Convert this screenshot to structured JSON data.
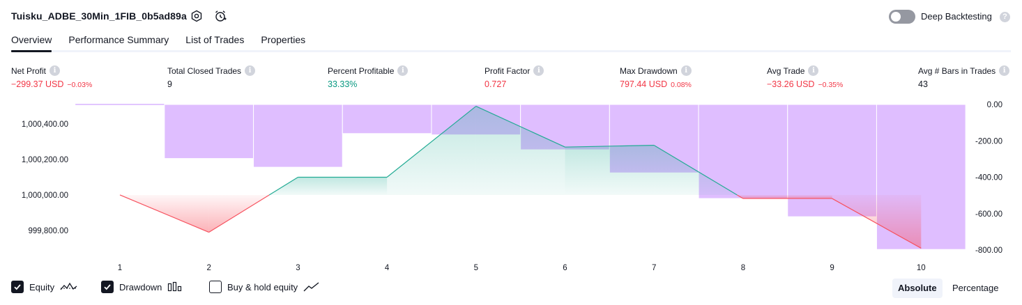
{
  "header": {
    "title": "Tuisku_ADBE_30Min_1FIB_0b5ad89a",
    "deep_backtesting_label": "Deep Backtesting",
    "help_glyph": "?"
  },
  "tabs": [
    {
      "label": "Overview",
      "active": true
    },
    {
      "label": "Performance Summary",
      "active": false
    },
    {
      "label": "List of Trades",
      "active": false
    },
    {
      "label": "Properties",
      "active": false
    }
  ],
  "metrics": [
    {
      "label": "Net Profit",
      "value": "−299.37 USD",
      "sub": "−0.03%",
      "color": "#f23645"
    },
    {
      "label": "Total Closed Trades",
      "value": "9",
      "sub": "",
      "color": "#131722"
    },
    {
      "label": "Percent Profitable",
      "value": "33.33%",
      "sub": "",
      "color": "#089981"
    },
    {
      "label": "Profit Factor",
      "value": "0.727",
      "sub": "",
      "color": "#f23645"
    },
    {
      "label": "Max Drawdown",
      "value": "797.44 USD",
      "sub": "0.08%",
      "color": "#f23645"
    },
    {
      "label": "Avg Trade",
      "value": "−33.26 USD",
      "sub": "−0.35%",
      "color": "#f23645"
    },
    {
      "label": "Avg # Bars in Trades",
      "value": "43",
      "sub": "",
      "color": "#131722"
    }
  ],
  "info_glyph": "i",
  "chart_data": {
    "type": "line",
    "x": [
      1,
      2,
      3,
      4,
      5,
      6,
      7,
      8,
      9,
      10
    ],
    "equity": {
      "name": "Equity",
      "values": [
        1000000,
        999790,
        1000100,
        1000100,
        1000500,
        1000270,
        1000280,
        999980,
        999980,
        999700
      ],
      "baseline": 1000000,
      "ylim": [
        999690,
        1000510
      ],
      "yticks": [
        "1,000,400.00",
        "1,000,200.00",
        "1,000,000.00",
        "999,800.00"
      ],
      "ytick_values": [
        1000400,
        1000200,
        1000000,
        999800
      ],
      "color_up": "#22ab94",
      "color_down": "#f7525f"
    },
    "drawdown": {
      "name": "Drawdown",
      "values": [
        0,
        -297,
        -345,
        -160,
        -167,
        -249,
        -376,
        -517,
        -617,
        -797
      ],
      "ylim": [
        -800,
        0
      ],
      "yticks": [
        "0.00",
        "-200.00",
        "-400.00",
        "-600.00",
        "-800.00"
      ],
      "ytick_values": [
        0,
        -200,
        -400,
        -600,
        -800
      ],
      "color": "#d9b3ff"
    },
    "xticks": [
      "1",
      "2",
      "3",
      "4",
      "5",
      "6",
      "7",
      "8",
      "9",
      "10"
    ]
  },
  "legend": [
    {
      "label": "Equity",
      "checked": true,
      "icon": "equity-line-icon"
    },
    {
      "label": "Drawdown",
      "checked": true,
      "icon": "drawdown-bars-icon"
    },
    {
      "label": "Buy & hold equity",
      "checked": false,
      "icon": "buy-hold-line-icon"
    }
  ],
  "mode_switch": {
    "absolute_label": "Absolute",
    "percentage_label": "Percentage",
    "selected": "Absolute"
  }
}
